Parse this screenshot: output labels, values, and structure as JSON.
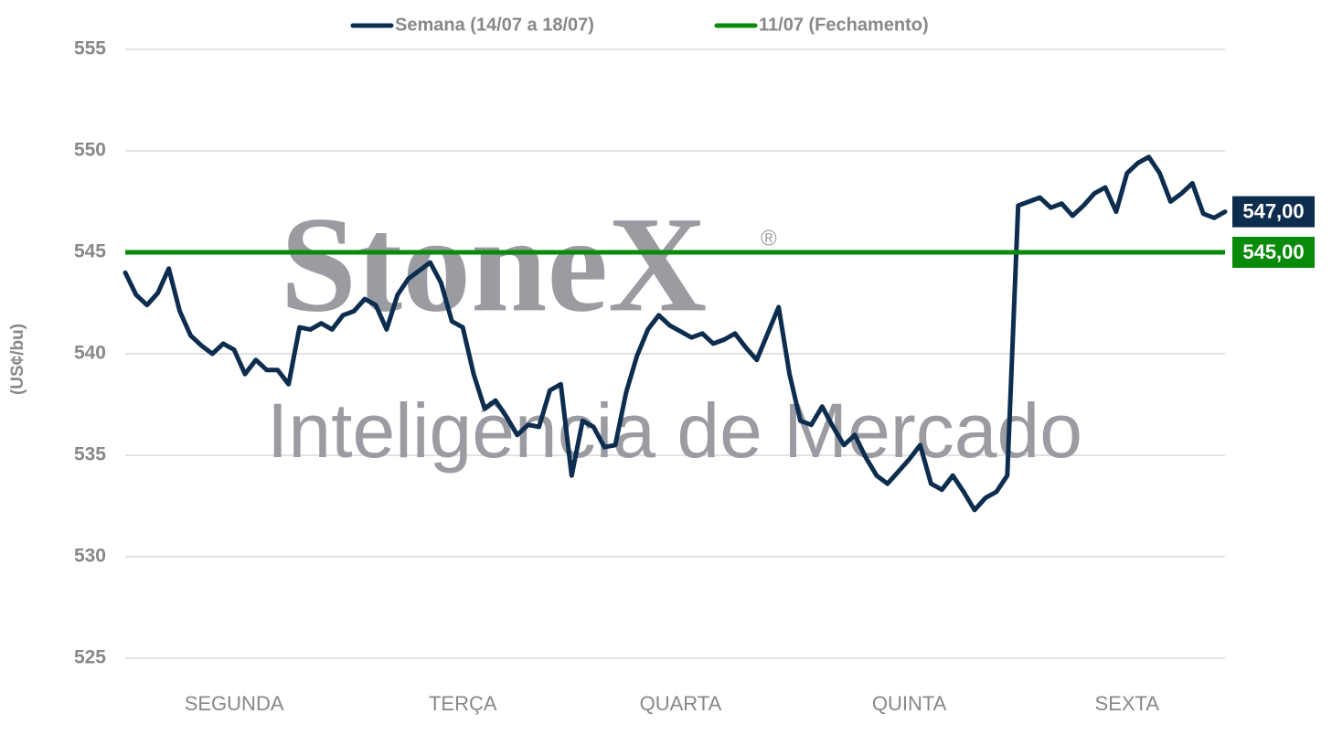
{
  "chart_data": {
    "type": "line",
    "watermark": {
      "brand": "StoneX",
      "mark": "®",
      "tagline": "Inteligência de Mercado"
    },
    "y_label": "(US¢/bu)",
    "categories": [
      null,
      null,
      null,
      null,
      null,
      null,
      null,
      null,
      null,
      null,
      "SEGUNDA",
      null,
      null,
      null,
      null,
      null,
      null,
      null,
      null,
      null,
      null,
      null,
      null,
      null,
      null,
      null,
      null,
      null,
      null,
      null,
      null,
      "TERÇA",
      null,
      null,
      null,
      null,
      null,
      null,
      null,
      null,
      null,
      null,
      null,
      null,
      null,
      null,
      null,
      null,
      null,
      null,
      null,
      "QUARTA",
      null,
      null,
      null,
      null,
      null,
      null,
      null,
      null,
      null,
      null,
      null,
      null,
      null,
      null,
      null,
      null,
      null,
      null,
      null,
      null,
      "QUINTA",
      null,
      null,
      null,
      null,
      null,
      null,
      null,
      null,
      null,
      null,
      null,
      null,
      null,
      null,
      null,
      null,
      null,
      null,
      null,
      "SEXTA",
      null,
      null,
      null,
      null,
      null,
      null,
      null,
      null,
      null
    ],
    "series": [
      {
        "name": "Semana (14/07 a 18/07)",
        "color": "#0d2d4f",
        "end_label": "547,00",
        "values": [
          544.0,
          542.9,
          542.4,
          543.0,
          544.2,
          542.1,
          540.9,
          540.4,
          540.0,
          540.5,
          540.2,
          539.0,
          539.7,
          539.2,
          539.2,
          538.5,
          541.3,
          541.2,
          541.5,
          541.2,
          541.9,
          542.1,
          542.7,
          542.4,
          541.2,
          542.9,
          543.7,
          544.1,
          544.5,
          543.5,
          541.6,
          541.3,
          539.0,
          537.3,
          537.7,
          536.9,
          536.0,
          536.5,
          536.4,
          538.2,
          538.5,
          534.0,
          536.7,
          536.4,
          535.4,
          535.5,
          538.1,
          539.9,
          541.2,
          541.9,
          541.4,
          541.1,
          540.8,
          541.0,
          540.5,
          540.7,
          541.0,
          540.3,
          539.7,
          541.0,
          542.3,
          539.0,
          536.7,
          536.5,
          537.4,
          536.4,
          535.5,
          536.0,
          534.9,
          534.0,
          533.6,
          534.2,
          534.8,
          535.5,
          533.6,
          533.3,
          534.0,
          533.2,
          532.3,
          532.9,
          533.2,
          534.0,
          547.3,
          547.5,
          547.7,
          547.2,
          547.4,
          546.8,
          547.3,
          547.9,
          548.2,
          547.0,
          548.9,
          549.4,
          549.7,
          548.9,
          547.5,
          547.9,
          548.4,
          546.9,
          546.7,
          547.0
        ]
      },
      {
        "name": "11/07 (Fechamento)",
        "color": "#0a8a0a",
        "end_label": "545,00",
        "value": 545
      }
    ],
    "ylim": [
      525,
      555
    ],
    "yticks": [
      525,
      530,
      535,
      540,
      545,
      550,
      555
    ],
    "grid": true
  }
}
